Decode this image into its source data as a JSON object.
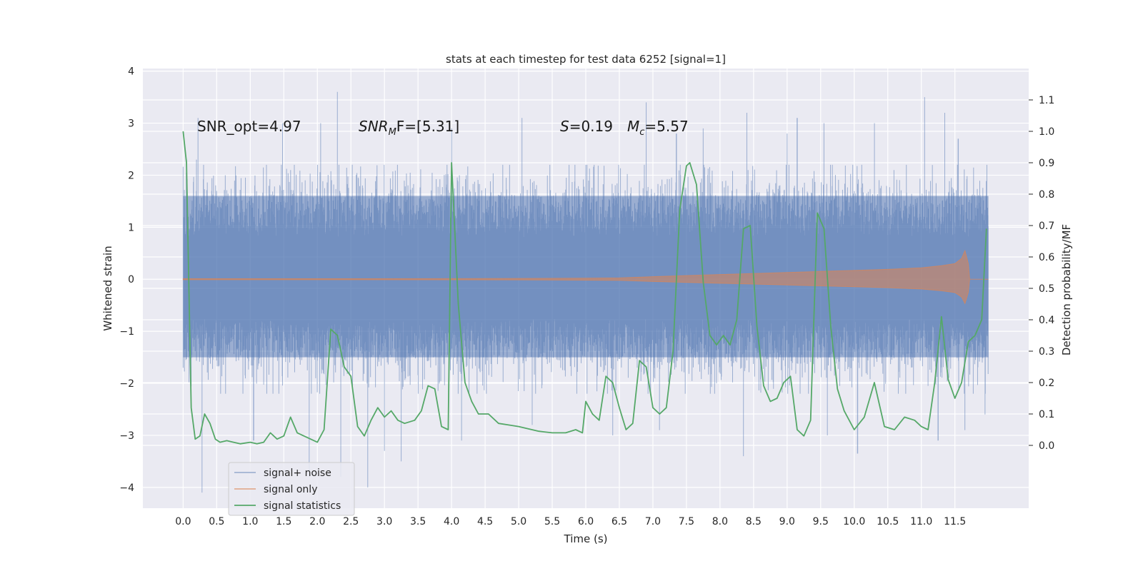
{
  "chart_data": {
    "type": "line",
    "title": "stats at each timestep for test data 6252 [signal=1]",
    "xlabel": "Time (s)",
    "ylabel": "Whitened strain",
    "y2label": "Detection probability/MF",
    "xlim": [
      -0.6,
      12.6
    ],
    "ylim": [
      -4.4,
      4.05
    ],
    "y2lim": [
      -0.2,
      1.2
    ],
    "grid": true,
    "legend_position": "lower-left",
    "x_ticks": [
      "0.0",
      "0.5",
      "1.0",
      "1.5",
      "2.0",
      "2.5",
      "3.0",
      "3.5",
      "4.0",
      "4.5",
      "5.0",
      "5.5",
      "6.0",
      "6.5",
      "7.0",
      "7.5",
      "8.0",
      "8.5",
      "9.0",
      "9.5",
      "10.0",
      "10.5",
      "11.0",
      "11.5"
    ],
    "y_ticks": [
      "4",
      "3",
      "2",
      "1",
      "0",
      "−1",
      "−2",
      "−3",
      "−4"
    ],
    "y2_ticks": [
      "1.1",
      "1.0",
      "0.9",
      "0.8",
      "0.7",
      "0.6",
      "0.5",
      "0.4",
      "0.3",
      "0.2",
      "0.1",
      "0.0"
    ],
    "annotations": {
      "snr_opt": "SNR_opt=4.97",
      "snr_mf_main": "SNR",
      "snr_mf_sub": "M",
      "snr_mf_rest": "F=[5.31]",
      "s_symbol": "S",
      "s_value": "=0.19",
      "mc_symbol": "M",
      "mc_sub": "c",
      "mc_value": "=5.57"
    },
    "series": [
      {
        "name": "signal+ noise",
        "color": "#4c72b0",
        "opacity": 0.5,
        "note": "dense noise trace",
        "x_range": [
          0.0,
          12.0
        ],
        "typical_range": [
          -1.5,
          1.6
        ],
        "peaks_high": [
          [
            0.05,
            2.3
          ],
          [
            0.2,
            2.3
          ],
          [
            0.22,
            3.1
          ],
          [
            1.48,
            3.0
          ],
          [
            2.05,
            3.0
          ],
          [
            2.3,
            3.6
          ],
          [
            4.0,
            2.9
          ],
          [
            5.05,
            3.1
          ],
          [
            6.9,
            3.4
          ],
          [
            7.35,
            2.8
          ],
          [
            7.75,
            2.9
          ],
          [
            8.4,
            3.2
          ],
          [
            9.0,
            2.8
          ],
          [
            9.15,
            3.1
          ],
          [
            9.55,
            3.0
          ],
          [
            10.3,
            3.0
          ],
          [
            11.05,
            3.5
          ],
          [
            11.35,
            3.2
          ],
          [
            11.55,
            2.7
          ]
        ],
        "peaks_low": [
          [
            0.28,
            -4.1
          ],
          [
            1.05,
            -3.1
          ],
          [
            1.88,
            -3.8
          ],
          [
            2.35,
            -3.8
          ],
          [
            2.75,
            -4.0
          ],
          [
            3.0,
            -3.3
          ],
          [
            3.25,
            -3.5
          ],
          [
            4.15,
            -3.1
          ],
          [
            5.2,
            -2.8
          ],
          [
            6.4,
            -3.0
          ],
          [
            7.1,
            -2.9
          ],
          [
            8.35,
            -3.4
          ],
          [
            9.6,
            -3.0
          ],
          [
            10.05,
            -3.35
          ],
          [
            11.25,
            -3.1
          ],
          [
            11.65,
            -2.9
          ],
          [
            11.95,
            -2.6
          ]
        ]
      },
      {
        "name": "signal only",
        "color": "#dd8452",
        "x": [
          0.0,
          2.0,
          4.0,
          5.0,
          6.0,
          6.5,
          7.0,
          7.5,
          8.0,
          8.5,
          9.0,
          9.5,
          10.0,
          10.5,
          11.0,
          11.3,
          11.5,
          11.6,
          11.65,
          11.7,
          11.72,
          12.0
        ],
        "amplitude": [
          0.01,
          0.01,
          0.012,
          0.015,
          0.02,
          0.025,
          0.05,
          0.07,
          0.09,
          0.11,
          0.13,
          0.15,
          0.17,
          0.19,
          0.22,
          0.26,
          0.3,
          0.4,
          0.55,
          0.3,
          0.0,
          0.0
        ]
      },
      {
        "name": "signal statistics",
        "color": "#55a868",
        "x": [
          0.0,
          0.05,
          0.12,
          0.18,
          0.25,
          0.32,
          0.4,
          0.48,
          0.55,
          0.65,
          0.75,
          0.85,
          1.0,
          1.1,
          1.2,
          1.3,
          1.4,
          1.5,
          1.6,
          1.7,
          1.8,
          1.9,
          2.0,
          2.1,
          2.2,
          2.3,
          2.4,
          2.5,
          2.6,
          2.7,
          2.8,
          2.9,
          3.0,
          3.1,
          3.2,
          3.3,
          3.45,
          3.55,
          3.65,
          3.75,
          3.85,
          3.95,
          4.0,
          4.1,
          4.2,
          4.3,
          4.4,
          4.55,
          4.7,
          4.85,
          5.0,
          5.3,
          5.5,
          5.7,
          5.85,
          5.95,
          6.0,
          6.1,
          6.2,
          6.3,
          6.4,
          6.5,
          6.6,
          6.7,
          6.8,
          6.9,
          7.0,
          7.1,
          7.2,
          7.3,
          7.4,
          7.5,
          7.55,
          7.65,
          7.75,
          7.85,
          7.95,
          8.05,
          8.15,
          8.25,
          8.35,
          8.45,
          8.55,
          8.65,
          8.75,
          8.85,
          8.95,
          9.05,
          9.15,
          9.25,
          9.35,
          9.45,
          9.55,
          9.65,
          9.75,
          9.85,
          10.0,
          10.15,
          10.3,
          10.45,
          10.6,
          10.75,
          10.9,
          11.0,
          11.1,
          11.2,
          11.3,
          11.4,
          11.5,
          11.6,
          11.7,
          11.8,
          11.9,
          11.97
        ],
        "y": [
          1.0,
          0.9,
          0.12,
          0.02,
          0.03,
          0.1,
          0.07,
          0.02,
          0.01,
          0.015,
          0.01,
          0.005,
          0.01,
          0.005,
          0.01,
          0.04,
          0.02,
          0.03,
          0.09,
          0.04,
          0.03,
          0.02,
          0.01,
          0.05,
          0.37,
          0.35,
          0.25,
          0.22,
          0.06,
          0.03,
          0.08,
          0.12,
          0.09,
          0.11,
          0.08,
          0.07,
          0.08,
          0.11,
          0.19,
          0.18,
          0.06,
          0.05,
          0.9,
          0.45,
          0.2,
          0.14,
          0.1,
          0.1,
          0.07,
          0.065,
          0.06,
          0.045,
          0.04,
          0.04,
          0.05,
          0.04,
          0.14,
          0.1,
          0.08,
          0.22,
          0.2,
          0.12,
          0.05,
          0.07,
          0.27,
          0.25,
          0.12,
          0.1,
          0.12,
          0.3,
          0.75,
          0.89,
          0.9,
          0.83,
          0.52,
          0.35,
          0.32,
          0.35,
          0.32,
          0.4,
          0.69,
          0.7,
          0.38,
          0.19,
          0.14,
          0.15,
          0.2,
          0.22,
          0.05,
          0.03,
          0.08,
          0.74,
          0.69,
          0.38,
          0.18,
          0.11,
          0.05,
          0.09,
          0.2,
          0.06,
          0.05,
          0.09,
          0.08,
          0.06,
          0.05,
          0.2,
          0.41,
          0.21,
          0.15,
          0.2,
          0.33,
          0.35,
          0.4,
          0.69
        ]
      }
    ]
  }
}
